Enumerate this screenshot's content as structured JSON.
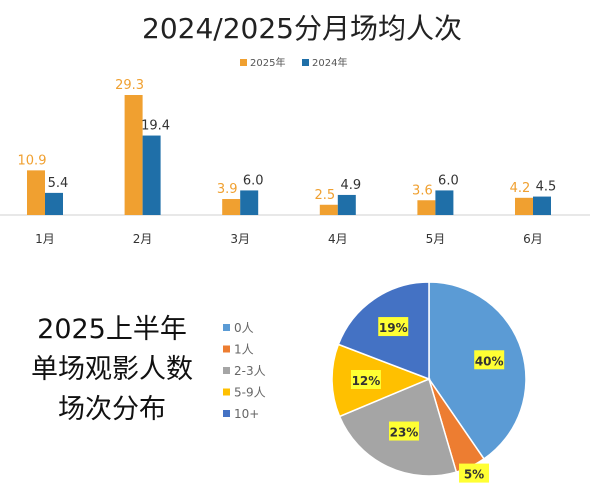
{
  "chart_data": [
    {
      "type": "bar",
      "title": "2024/2025分月场均人次",
      "categories": [
        "1月",
        "2月",
        "3月",
        "4月",
        "5月",
        "6月"
      ],
      "series": [
        {
          "name": "2025年",
          "color": "#F0A030",
          "values": [
            10.9,
            29.3,
            3.9,
            2.5,
            3.6,
            4.2
          ]
        },
        {
          "name": "2024年",
          "color": "#1F6FA8",
          "values": [
            5.4,
            19.4,
            6.0,
            4.9,
            6.0,
            4.5
          ]
        }
      ],
      "value_labels": {
        "2025年": [
          "10.9",
          "29.3",
          "3.9",
          "2.5",
          "3.6",
          "4.2"
        ],
        "2024年": [
          "5.4",
          "19.4",
          "6.0",
          "4.9",
          "6.0",
          "4.5"
        ]
      },
      "legend": "top-center",
      "ylim": [
        0,
        30
      ],
      "grid": false
    },
    {
      "type": "pie",
      "title_lines": [
        "2025上半年",
        "单场观影人数",
        "场次分布"
      ],
      "labels": [
        "0人",
        "1人",
        "2-3人",
        "5-9人",
        "10+"
      ],
      "values": [
        40,
        5,
        23,
        12,
        19
      ],
      "value_labels": [
        "40%",
        "5%",
        "23%",
        "12%",
        "19%"
      ],
      "colors": [
        "#5B9BD5",
        "#ED7D31",
        "#A5A5A5",
        "#FFC000",
        "#4472C4"
      ],
      "legend": "left"
    }
  ]
}
